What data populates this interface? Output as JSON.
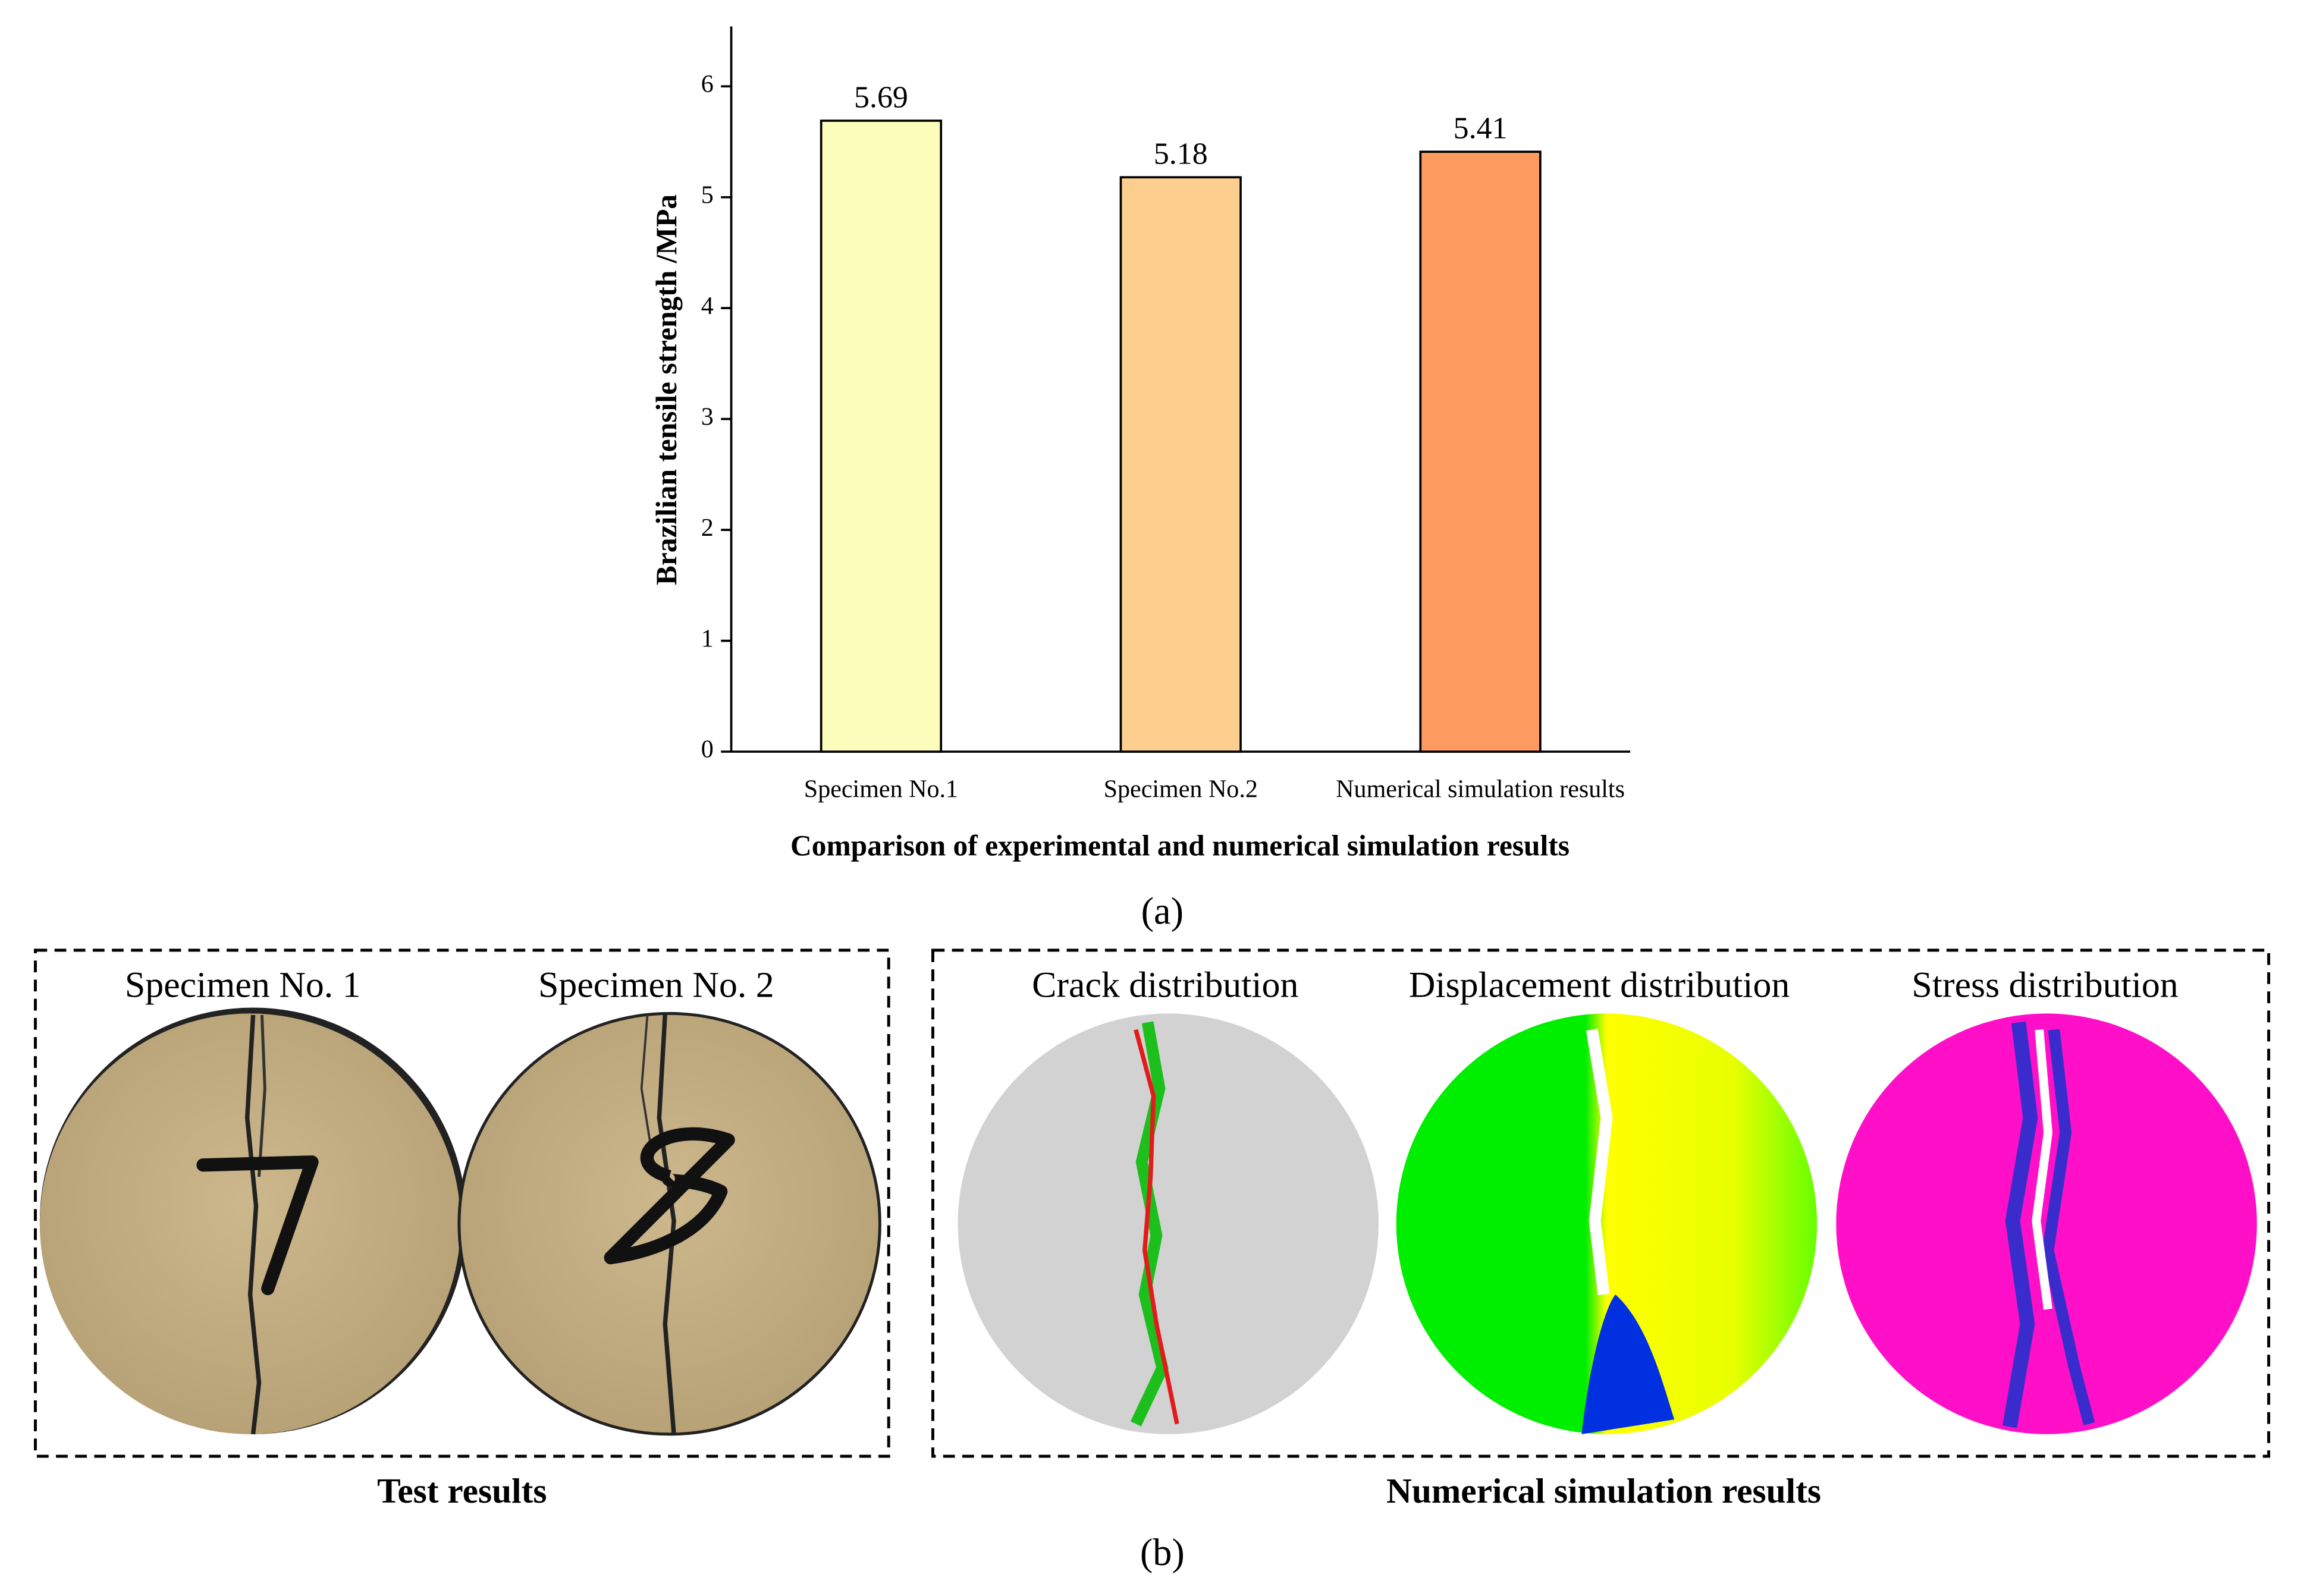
{
  "chart_data": {
    "type": "bar",
    "categories": [
      "Specimen No.1",
      "Specimen No.2",
      "Numerical simulation results"
    ],
    "values": [
      5.69,
      5.18,
      5.41
    ],
    "colors": [
      "#fdfdbb",
      "#fdcf8f",
      "#fd9a60"
    ],
    "ylabel": "Brazilian tensile strength /MPa",
    "xlabel": "Comparison of experimental and numerical simulation results",
    "ylim": [
      0,
      6.5
    ],
    "yticks": [
      0,
      1,
      2,
      3,
      4,
      5,
      6
    ],
    "grid": false
  },
  "panel_a_label": "(a)",
  "test_panel": {
    "specimens": [
      "Specimen No. 1",
      "Specimen No. 2"
    ],
    "caption": "Test results"
  },
  "simulation_panel": {
    "views": [
      "Crack distribution",
      "Displacement distribution",
      "Stress distribution"
    ],
    "caption": "Numerical simulation results"
  },
  "panel_b_label": "(b)"
}
